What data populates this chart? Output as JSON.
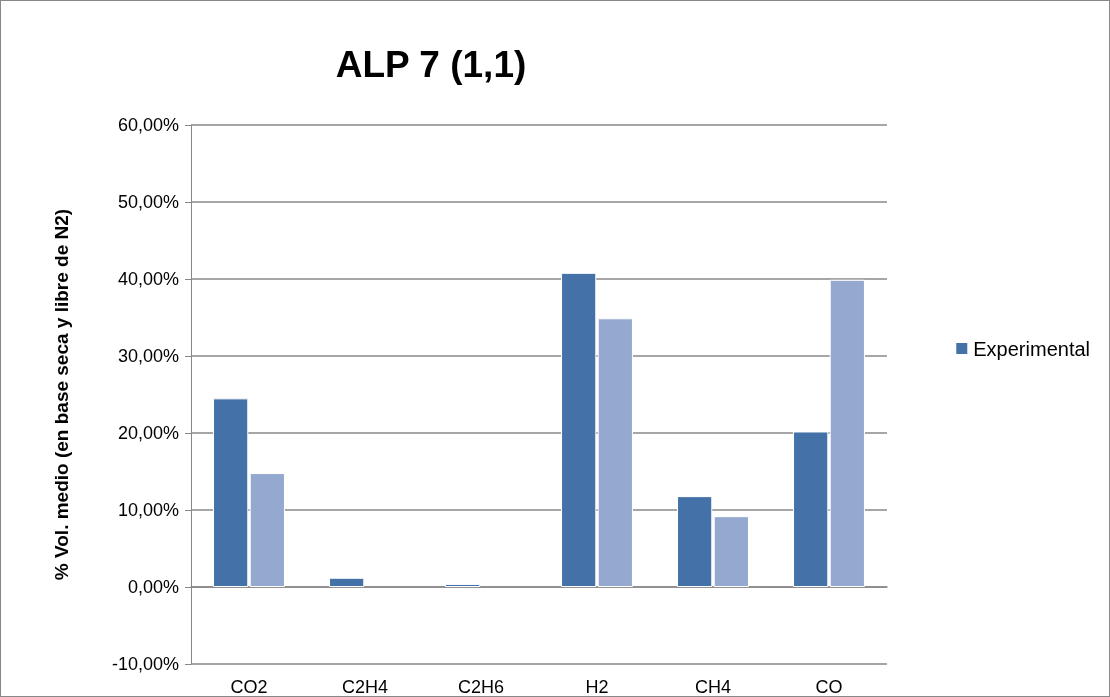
{
  "chart_data": {
    "type": "bar",
    "title": "ALP 7 (1,1)",
    "ylabel": "% Vol. medio (en base seca y libre de N2)",
    "categories": [
      "CO2",
      "C2H4",
      "C2H6",
      "H2",
      "CH4",
      "CO"
    ],
    "series": [
      {
        "name": "Experimental",
        "color": "#4472a8",
        "values": [
          24.5,
          1.2,
          0.4,
          40.8,
          11.8,
          20.2
        ]
      },
      {
        "color": "#95a9d0",
        "values": [
          14.8,
          null,
          null,
          34.9,
          9.2,
          39.9
        ]
      }
    ],
    "ylim": [
      -10,
      60
    ],
    "yticks": [
      {
        "value": -10,
        "label": "-10,00%"
      },
      {
        "value": 0,
        "label": "0,00%"
      },
      {
        "value": 10,
        "label": "10,00%"
      },
      {
        "value": 20,
        "label": "20,00%"
      },
      {
        "value": 30,
        "label": "30,00%"
      },
      {
        "value": 40,
        "label": "40,00%"
      },
      {
        "value": 50,
        "label": "50,00%"
      },
      {
        "value": 60,
        "label": "60,00%"
      }
    ],
    "grid": "y",
    "legend": "right"
  }
}
